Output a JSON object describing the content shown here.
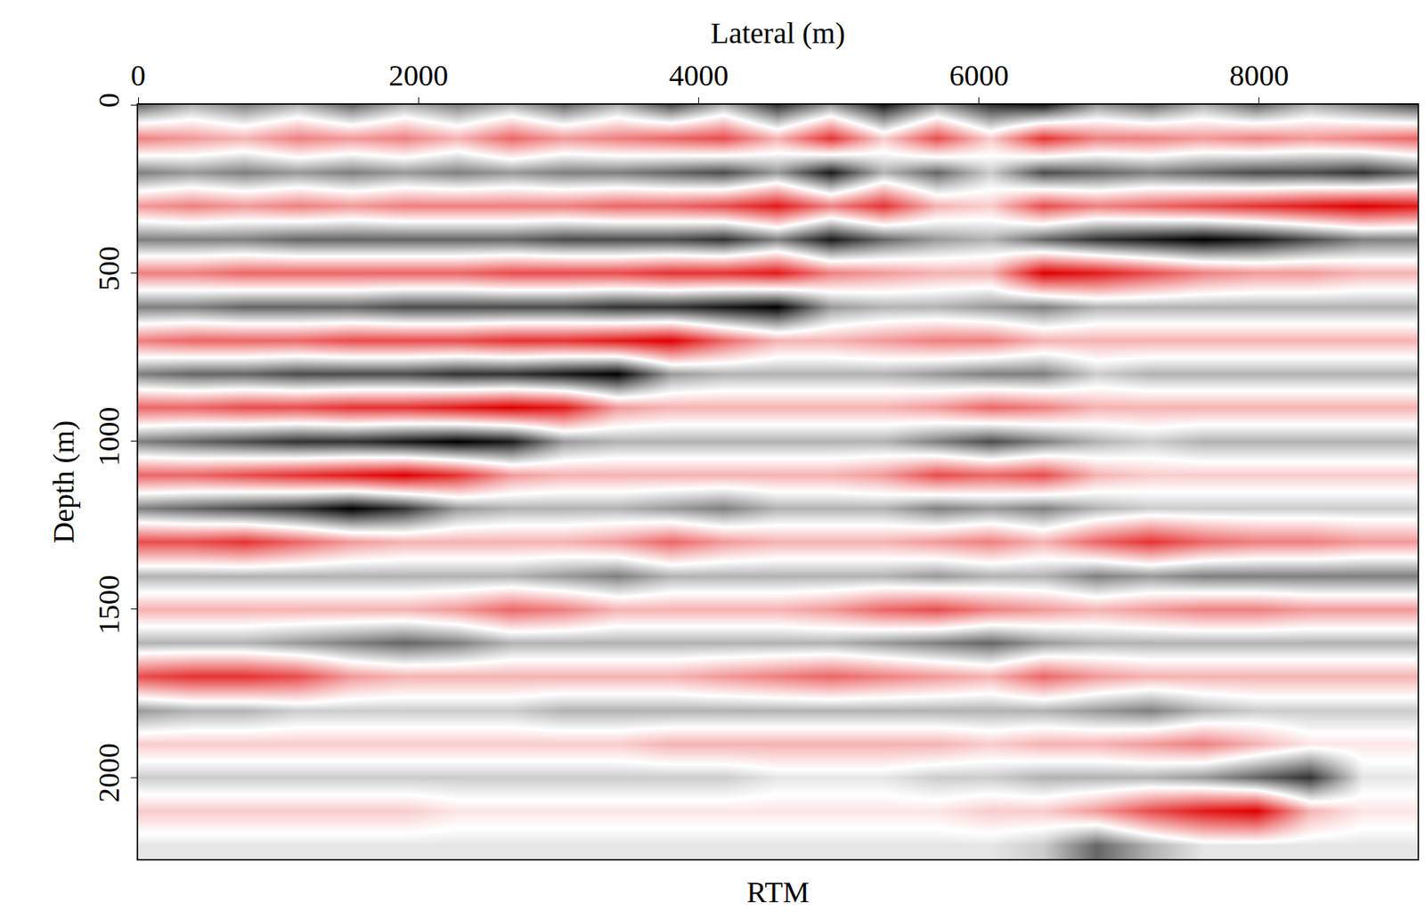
{
  "chart_data": {
    "type": "heatmap",
    "title": "RTM",
    "x_label": "Lateral (m)",
    "y_label": "Depth (m)",
    "xlim": [
      0,
      9130
    ],
    "ylim": [
      2243,
      0
    ],
    "xticks": [
      0,
      2000,
      4000,
      6000,
      8000
    ],
    "yticks": [
      0,
      500,
      1000,
      1500,
      2000
    ],
    "zlim": [
      -1,
      1
    ],
    "x": [
      0,
      380,
      760,
      1140,
      1520,
      1900,
      2280,
      2660,
      3040,
      3420,
      3800,
      4180,
      4560,
      4940,
      5320,
      5700,
      6080,
      6460,
      6840,
      7220,
      7600,
      7980,
      8360,
      8740,
      9120
    ],
    "y": [
      0,
      100,
      200,
      300,
      400,
      500,
      600,
      700,
      800,
      900,
      1000,
      1100,
      1200,
      1300,
      1400,
      1500,
      1600,
      1700,
      1800,
      1900,
      2000,
      2100,
      2200
    ],
    "z": [
      [
        0.6,
        0.3,
        0.5,
        0.3,
        0.6,
        0.3,
        0.5,
        0.3,
        0.6,
        0.3,
        0.7,
        0.3,
        0.8,
        0.4,
        0.9,
        0.4,
        0.8,
        0.9,
        0.4,
        0.6,
        0.3,
        0.6,
        0.3,
        0.5,
        0.7
      ],
      [
        -0.5,
        -0.4,
        -0.3,
        -0.5,
        -0.4,
        -0.5,
        -0.3,
        -0.6,
        -0.4,
        -0.5,
        -0.6,
        -0.7,
        -0.3,
        -0.8,
        -0.2,
        -0.7,
        -0.2,
        -0.8,
        -0.5,
        -0.5,
        -0.4,
        -0.5,
        -0.4,
        -0.5,
        -0.6
      ],
      [
        0.5,
        0.4,
        0.5,
        0.4,
        0.5,
        0.4,
        0.5,
        0.4,
        0.5,
        0.5,
        0.6,
        0.7,
        0.4,
        0.9,
        0.3,
        0.6,
        0.2,
        0.7,
        0.6,
        0.5,
        0.6,
        0.7,
        0.7,
        0.8,
        0.6
      ],
      [
        -0.4,
        -0.5,
        -0.4,
        -0.5,
        -0.4,
        -0.5,
        -0.5,
        -0.5,
        -0.5,
        -0.6,
        -0.6,
        -0.7,
        -0.9,
        -0.5,
        -0.8,
        -0.3,
        -0.2,
        -0.7,
        -0.5,
        -0.6,
        -0.7,
        -0.8,
        -0.9,
        -1.0,
        -0.9
      ],
      [
        0.5,
        0.5,
        0.5,
        0.6,
        0.6,
        0.6,
        0.6,
        0.6,
        0.7,
        0.7,
        0.7,
        0.8,
        0.5,
        0.9,
        0.6,
        0.4,
        0.3,
        0.6,
        0.8,
        0.9,
        1.0,
        0.9,
        0.7,
        0.5,
        0.5
      ],
      [
        -0.5,
        -0.5,
        -0.6,
        -0.6,
        -0.6,
        -0.6,
        -0.6,
        -0.7,
        -0.7,
        -0.7,
        -0.8,
        -0.8,
        -0.9,
        -0.5,
        -0.4,
        -0.3,
        -0.3,
        -1.0,
        -0.9,
        -0.7,
        -0.5,
        -0.4,
        -0.4,
        -0.3,
        -0.3
      ],
      [
        0.5,
        0.5,
        0.6,
        0.6,
        0.6,
        0.7,
        0.7,
        0.7,
        0.7,
        0.8,
        0.8,
        0.9,
        1.0,
        0.4,
        0.3,
        0.3,
        0.4,
        0.5,
        0.3,
        0.3,
        0.3,
        0.3,
        0.3,
        0.3,
        0.3
      ],
      [
        -0.5,
        -0.6,
        -0.6,
        -0.6,
        -0.7,
        -0.7,
        -0.7,
        -0.8,
        -0.8,
        -0.9,
        -1.0,
        -0.6,
        -0.3,
        -0.3,
        -0.4,
        -0.5,
        -0.5,
        -0.3,
        -0.3,
        -0.3,
        -0.3,
        -0.3,
        -0.3,
        -0.3,
        -0.3
      ],
      [
        0.5,
        0.6,
        0.6,
        0.7,
        0.7,
        0.7,
        0.8,
        0.8,
        0.9,
        1.0,
        0.4,
        0.3,
        0.3,
        0.3,
        0.3,
        0.4,
        0.5,
        0.5,
        0.2,
        0.3,
        0.3,
        0.3,
        0.3,
        0.3,
        0.3
      ],
      [
        -0.6,
        -0.6,
        -0.7,
        -0.7,
        -0.8,
        -0.8,
        -0.9,
        -1.0,
        -0.9,
        -0.4,
        -0.3,
        -0.3,
        -0.3,
        -0.3,
        -0.3,
        -0.4,
        -0.6,
        -0.5,
        -0.3,
        -0.3,
        -0.3,
        -0.3,
        -0.3,
        -0.3,
        -0.3
      ],
      [
        0.5,
        0.6,
        0.7,
        0.8,
        0.8,
        0.9,
        1.0,
        0.9,
        0.4,
        0.3,
        0.3,
        0.3,
        0.3,
        0.3,
        0.3,
        0.5,
        0.7,
        0.5,
        0.3,
        0.2,
        0.3,
        0.3,
        0.3,
        0.3,
        0.3
      ],
      [
        -0.6,
        -0.6,
        -0.7,
        -0.8,
        -0.9,
        -1.0,
        -0.8,
        -0.4,
        -0.3,
        -0.3,
        -0.3,
        -0.3,
        -0.3,
        -0.3,
        -0.4,
        -0.7,
        -0.6,
        -0.7,
        -0.3,
        -0.2,
        -0.2,
        -0.2,
        -0.2,
        -0.2,
        -0.2
      ],
      [
        0.5,
        0.6,
        0.7,
        0.8,
        1.0,
        0.8,
        0.4,
        0.3,
        0.3,
        0.3,
        0.4,
        0.5,
        0.3,
        0.3,
        0.3,
        0.5,
        0.4,
        0.5,
        0.3,
        0.2,
        0.2,
        0.2,
        0.2,
        0.2,
        0.2
      ],
      [
        -0.7,
        -0.7,
        -0.8,
        -0.6,
        -0.4,
        -0.3,
        -0.3,
        -0.3,
        -0.3,
        -0.4,
        -0.6,
        -0.4,
        -0.3,
        -0.3,
        -0.3,
        -0.4,
        -0.5,
        -0.3,
        -0.6,
        -0.8,
        -0.6,
        -0.5,
        -0.5,
        -0.4,
        -0.4
      ],
      [
        0.3,
        0.3,
        0.3,
        0.3,
        0.3,
        0.3,
        0.3,
        0.3,
        0.4,
        0.5,
        0.3,
        0.3,
        0.3,
        0.3,
        0.3,
        0.4,
        0.3,
        0.3,
        0.5,
        0.4,
        0.5,
        0.5,
        0.5,
        0.5,
        0.5
      ],
      [
        -0.3,
        -0.3,
        -0.3,
        -0.3,
        -0.3,
        -0.3,
        -0.4,
        -0.6,
        -0.5,
        -0.3,
        -0.3,
        -0.3,
        -0.3,
        -0.4,
        -0.6,
        -0.7,
        -0.5,
        -0.4,
        -0.3,
        -0.4,
        -0.5,
        -0.5,
        -0.4,
        -0.4,
        -0.4
      ],
      [
        0.3,
        0.3,
        0.3,
        0.4,
        0.5,
        0.6,
        0.5,
        0.3,
        0.3,
        0.3,
        0.3,
        0.3,
        0.3,
        0.3,
        0.4,
        0.5,
        0.6,
        0.4,
        0.3,
        0.3,
        0.3,
        0.3,
        0.3,
        0.3,
        0.3
      ],
      [
        -0.7,
        -0.8,
        -0.8,
        -0.7,
        -0.4,
        -0.3,
        -0.3,
        -0.3,
        -0.3,
        -0.3,
        -0.3,
        -0.4,
        -0.5,
        -0.6,
        -0.5,
        -0.4,
        -0.3,
        -0.6,
        -0.4,
        -0.3,
        -0.3,
        -0.3,
        -0.3,
        -0.3,
        -0.3
      ],
      [
        0.4,
        0.3,
        0.3,
        0.2,
        0.2,
        0.2,
        0.2,
        0.2,
        0.3,
        0.3,
        0.3,
        0.3,
        0.3,
        0.3,
        0.3,
        0.3,
        0.3,
        0.3,
        0.4,
        0.5,
        0.3,
        0.2,
        0.2,
        0.2,
        0.2
      ],
      [
        -0.2,
        -0.2,
        -0.2,
        -0.2,
        -0.2,
        -0.2,
        -0.2,
        -0.2,
        -0.2,
        -0.2,
        -0.3,
        -0.3,
        -0.3,
        -0.3,
        -0.3,
        -0.3,
        -0.2,
        -0.3,
        -0.3,
        -0.4,
        -0.5,
        -0.3,
        -0.1,
        -0.1,
        -0.1
      ],
      [
        0.2,
        0.2,
        0.2,
        0.2,
        0.2,
        0.2,
        0.2,
        0.2,
        0.2,
        0.2,
        0.2,
        0.2,
        0.1,
        0.1,
        0.1,
        0.2,
        0.2,
        0.3,
        0.3,
        0.3,
        0.4,
        0.6,
        0.8,
        0.1,
        0.1
      ],
      [
        -0.2,
        -0.2,
        -0.2,
        -0.2,
        -0.2,
        -0.2,
        -0.1,
        -0.1,
        -0.1,
        -0.1,
        -0.1,
        -0.1,
        -0.1,
        -0.1,
        -0.1,
        -0.1,
        -0.2,
        -0.2,
        -0.4,
        -0.7,
        -0.9,
        -1.0,
        -0.3,
        -0.1,
        -0.1
      ],
      [
        0.1,
        0.1,
        0.1,
        0.1,
        0.1,
        0.1,
        0.1,
        0.1,
        0.1,
        0.1,
        0.1,
        0.1,
        0.1,
        0.1,
        0.1,
        0.1,
        0.1,
        0.2,
        0.6,
        0.3,
        0.1,
        0.1,
        0.1,
        0.1,
        0.1
      ]
    ]
  }
}
